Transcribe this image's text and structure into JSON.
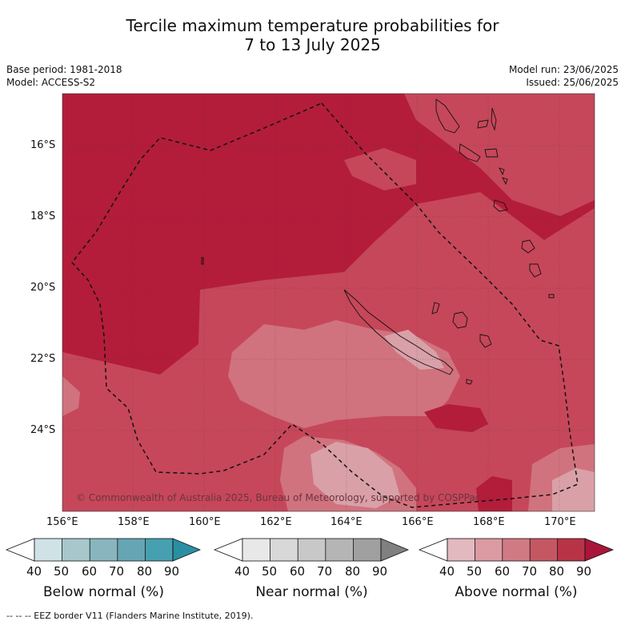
{
  "title_line1": "Tercile maximum temperature probabilities for",
  "title_line2": "7 to 13 July 2025",
  "meta": {
    "base_period": "Base period: 1981-2018",
    "model": "Model: ACCESS-S2",
    "model_run": "Model run: 23/06/2025",
    "issued": "Issued: 25/06/2025"
  },
  "map": {
    "lat_labels": [
      "16°S",
      "18°S",
      "20°S",
      "22°S",
      "24°S"
    ],
    "lon_labels": [
      "156°E",
      "158°E",
      "160°E",
      "162°E",
      "164°E",
      "166°E",
      "168°E",
      "170°E"
    ],
    "copyright": "© Commonwealth of Australia 2025, Bureau of Meteorology, supported by COSPPac",
    "colors": {
      "above_80_90": "#b31d3a",
      "above_70_80": "#c6475a",
      "above_60_70": "#d0737e",
      "above_50_60": "#d9a0a8"
    }
  },
  "colorbars": [
    {
      "title": "Below normal (%)",
      "ticks": [
        "40",
        "50",
        "60",
        "70",
        "80",
        "90"
      ],
      "colors": [
        "#ffffff",
        "#cfe3e7",
        "#a7c7cc",
        "#89b5bf",
        "#66a5b3",
        "#46a0b0",
        "#2a8fa3"
      ]
    },
    {
      "title": "Near normal (%)",
      "ticks": [
        "40",
        "50",
        "60",
        "70",
        "80",
        "90"
      ],
      "colors": [
        "#ffffff",
        "#e8e8e8",
        "#d8d8d8",
        "#c8c8c8",
        "#b5b5b5",
        "#a0a0a0",
        "#808080"
      ]
    },
    {
      "title": "Above normal (%)",
      "ticks": [
        "40",
        "50",
        "60",
        "70",
        "80",
        "90"
      ],
      "colors": [
        "#ffffff",
        "#e3b9c0",
        "#dc9aa3",
        "#d07a84",
        "#c55763",
        "#b93347",
        "#a9163a"
      ]
    }
  ],
  "footer": "--  --  -- EEZ border V11 (Flanders Marine Institute, 2019)."
}
